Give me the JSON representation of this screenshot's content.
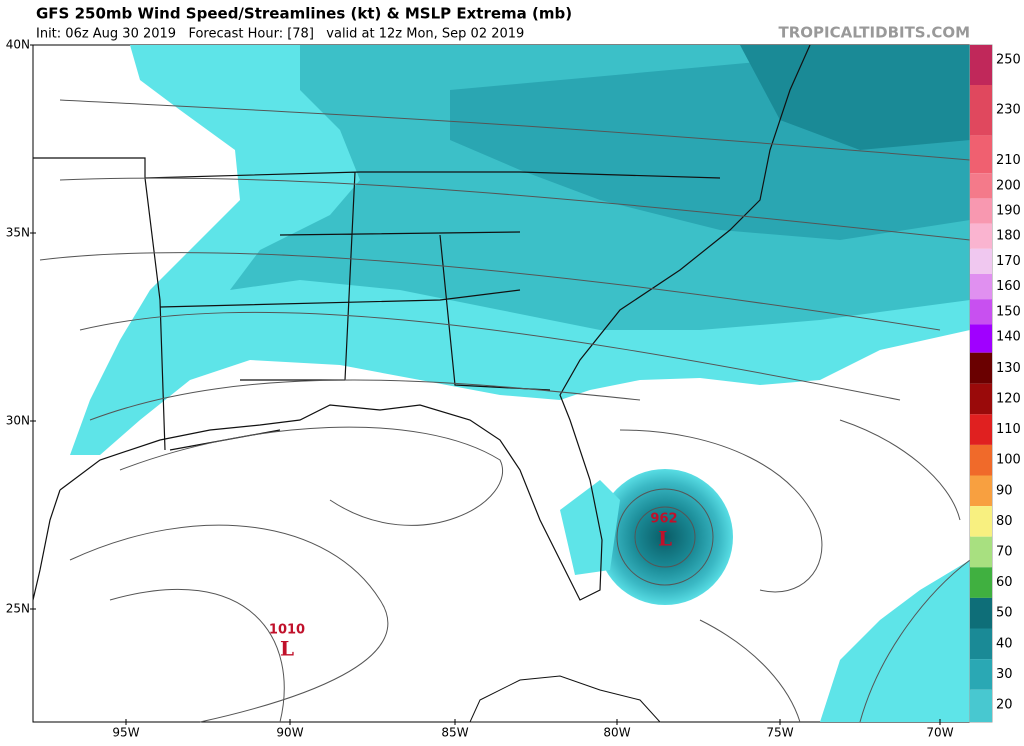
{
  "header": {
    "title": "GFS 250mb Wind Speed/Streamlines (kt) & MSLP Extrema (mb)",
    "subtitle": "Init: 06z Aug 30 2019   Forecast Hour: [78]   valid at 12z Mon, Sep 02 2019",
    "site": "TROPICALTIDBITS.COM"
  },
  "latitude_labels": [
    "40N",
    "35N",
    "30N",
    "25N"
  ],
  "longitude_labels": [
    "95W",
    "90W",
    "85W",
    "80W",
    "75W",
    "70W"
  ],
  "pressure_centers": [
    {
      "value": "962",
      "label": "L"
    },
    {
      "value": "1010",
      "label": "L"
    }
  ],
  "colorbar": {
    "labels": [
      250,
      230,
      210,
      200,
      190,
      180,
      170,
      160,
      150,
      140,
      130,
      120,
      110,
      100,
      90,
      80,
      70,
      60,
      50,
      40,
      30,
      20
    ],
    "colors": [
      "#c0285a",
      "#e0485e",
      "#f06070",
      "#f47a8a",
      "#f898b0",
      "#fab4d0",
      "#f0c8f0",
      "#e090f0",
      "#c850f0",
      "#a000ff",
      "#6a0000",
      "#9a0a0a",
      "#e02020",
      "#f06a2a",
      "#f8a040",
      "#f8f080",
      "#a8e080",
      "#40b040",
      "#0e6e78",
      "#1a8a96",
      "#2aa8b4",
      "#48c8d0"
    ]
  }
}
